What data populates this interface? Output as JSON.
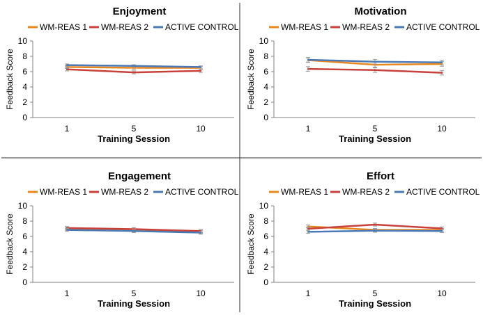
{
  "figure": {
    "colors": {
      "divider": "#333333",
      "axis": "#808080",
      "error_bar": "#9a9a9a"
    }
  },
  "chart_data": [
    {
      "type": "line",
      "title": "Enjoyment",
      "xlabel": "Training Session",
      "ylabel": "Feedback Score",
      "categories": [
        "1",
        "5",
        "10"
      ],
      "ylim": [
        0,
        10
      ],
      "yticks": [
        "0",
        "2",
        "4",
        "6",
        "8",
        "10"
      ],
      "yticks_values": [
        0,
        2,
        4,
        6,
        8,
        10
      ],
      "grid": false,
      "legend_position": "top",
      "series": [
        {
          "name": "WM-REAS 1",
          "color": "#e8871e",
          "values": [
            6.6,
            6.5,
            6.5
          ],
          "errors": [
            0.2,
            0.2,
            0.2
          ]
        },
        {
          "name": "WM-REAS 2",
          "color": "#c8413b",
          "values": [
            6.3,
            5.9,
            6.1
          ],
          "errors": [
            0.2,
            0.2,
            0.2
          ]
        },
        {
          "name": "ACTIVE CONTROL",
          "color": "#4a7ab5",
          "values": [
            6.85,
            6.75,
            6.6
          ],
          "errors": [
            0.15,
            0.15,
            0.15
          ]
        }
      ]
    },
    {
      "type": "line",
      "title": "Motivation",
      "xlabel": "Training Session",
      "ylabel": "Feedback Score",
      "categories": [
        "1",
        "5",
        "10"
      ],
      "ylim": [
        0,
        10
      ],
      "yticks": [
        "0",
        "2",
        "4",
        "6",
        "8",
        "10"
      ],
      "yticks_values": [
        0,
        2,
        4,
        6,
        8,
        10
      ],
      "grid": false,
      "legend_position": "top",
      "series": [
        {
          "name": "WM-REAS 1",
          "color": "#e8871e",
          "values": [
            7.5,
            6.9,
            7.0
          ],
          "errors": [
            0.3,
            0.3,
            0.3
          ]
        },
        {
          "name": "WM-REAS 2",
          "color": "#c8413b",
          "values": [
            6.35,
            6.2,
            5.85
          ],
          "errors": [
            0.3,
            0.3,
            0.3
          ]
        },
        {
          "name": "ACTIVE CONTROL",
          "color": "#4a7ab5",
          "values": [
            7.55,
            7.3,
            7.2
          ],
          "errors": [
            0.3,
            0.3,
            0.3
          ]
        }
      ]
    },
    {
      "type": "line",
      "title": "Engagement",
      "xlabel": "Training Session",
      "ylabel": "Feedback Score",
      "categories": [
        "1",
        "5",
        "10"
      ],
      "ylim": [
        0,
        10
      ],
      "yticks": [
        "0",
        "2",
        "4",
        "6",
        "8",
        "10"
      ],
      "yticks_values": [
        0,
        2,
        4,
        6,
        8,
        10
      ],
      "grid": false,
      "legend_position": "top",
      "series": [
        {
          "name": "WM-REAS 1",
          "color": "#e8871e",
          "values": [
            7.0,
            6.8,
            6.6
          ],
          "errors": [
            0.2,
            0.2,
            0.2
          ]
        },
        {
          "name": "WM-REAS 2",
          "color": "#c8413b",
          "values": [
            7.1,
            6.95,
            6.7
          ],
          "errors": [
            0.2,
            0.2,
            0.2
          ]
        },
        {
          "name": "ACTIVE CONTROL",
          "color": "#4a7ab5",
          "values": [
            6.85,
            6.7,
            6.5
          ],
          "errors": [
            0.2,
            0.2,
            0.2
          ]
        }
      ]
    },
    {
      "type": "line",
      "title": "Effort",
      "xlabel": "Training Session",
      "ylabel": "Feedback Score",
      "categories": [
        "1",
        "5",
        "10"
      ],
      "ylim": [
        0,
        10
      ],
      "yticks": [
        "0",
        "2",
        "4",
        "6",
        "8",
        "10"
      ],
      "yticks_values": [
        0,
        2,
        4,
        6,
        8,
        10
      ],
      "grid": false,
      "legend_position": "top",
      "series": [
        {
          "name": "WM-REAS 1",
          "color": "#e8871e",
          "values": [
            7.3,
            6.85,
            6.85
          ],
          "errors": [
            0.2,
            0.2,
            0.2
          ]
        },
        {
          "name": "WM-REAS 2",
          "color": "#c8413b",
          "values": [
            7.0,
            7.55,
            7.05
          ],
          "errors": [
            0.2,
            0.2,
            0.2
          ]
        },
        {
          "name": "ACTIVE CONTROL",
          "color": "#4a7ab5",
          "values": [
            6.6,
            6.75,
            6.7
          ],
          "errors": [
            0.2,
            0.2,
            0.2
          ]
        }
      ]
    }
  ]
}
